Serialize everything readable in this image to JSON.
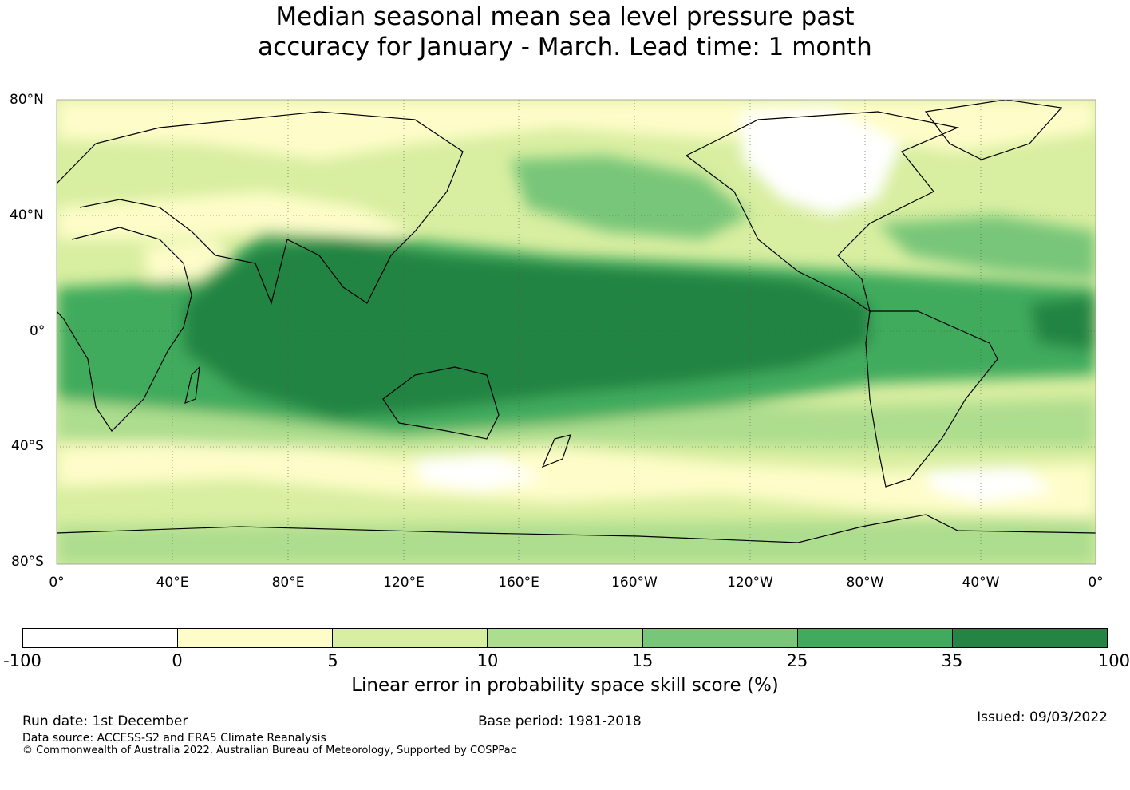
{
  "title": {
    "line1": "Median seasonal mean sea level pressure past",
    "line2": "accuracy for January - March. Lead time: 1 month"
  },
  "map": {
    "lat_labels": [
      "80°N",
      "40°N",
      "0°",
      "40°S",
      "80°S"
    ],
    "lon_labels": [
      "0°",
      "40°E",
      "80°E",
      "120°E",
      "160°E",
      "160°W",
      "120°W",
      "80°W",
      "40°W",
      "0°"
    ]
  },
  "colorbar": {
    "title": "Linear error in probability space skill score (%)",
    "ticks": [
      "-100",
      "0",
      "5",
      "10",
      "15",
      "25",
      "35",
      "100"
    ],
    "colors": [
      "#ffffff",
      "#fefdc9",
      "#d8eea0",
      "#addd8e",
      "#78c679",
      "#41ab5d",
      "#238443"
    ]
  },
  "footer": {
    "run_date": "Run date: 1st December",
    "base_period": "Base period: 1981-2018",
    "issued": "Issued: 09/03/2022",
    "data_source": "Data source: ACCESS-S2 and ERA5 Climate Reanalysis",
    "copyright": "© Commonwealth of Australia 2022, Australian Bureau of Meteorology, Supported by COSPPac"
  }
}
